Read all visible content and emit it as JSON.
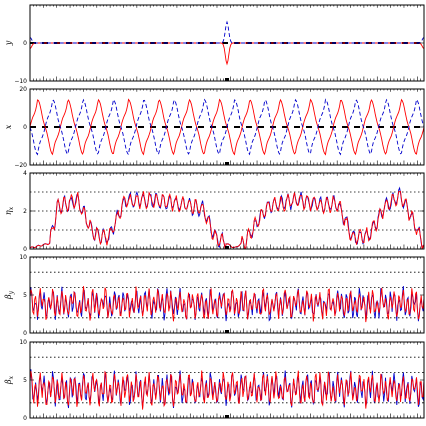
{
  "figure": {
    "background": "#ffffff",
    "series_colors": {
      "red": "#ff0000",
      "blue": "#0000cc",
      "dashed_ref": "#000000"
    }
  },
  "chart_data": [
    {
      "type": "line",
      "ylabel": "y",
      "ylim": [
        -10,
        10
      ],
      "yticks": [
        -10,
        0
      ],
      "yticklabels": [
        "−10",
        "0"
      ],
      "grid_y": [],
      "ref_line": {
        "y": 0,
        "style": "dashed",
        "color": "#000000"
      },
      "x_range": [
        0,
        1
      ],
      "series": [
        {
          "color": "#ff0000",
          "style": "solid",
          "shape": "spike",
          "base": 0,
          "events": [
            [
              0.0,
              -1.5
            ],
            [
              0.5,
              -5.5
            ],
            [
              1.0,
              -1.5
            ]
          ]
        },
        {
          "color": "#0000cc",
          "style": "dashed",
          "shape": "spike",
          "base": 0,
          "events": [
            [
              0.0,
              1.5
            ],
            [
              0.5,
              5.5
            ],
            [
              1.0,
              1.5
            ]
          ]
        }
      ]
    },
    {
      "type": "line",
      "ylabel": "x",
      "ylim": [
        -20,
        20
      ],
      "yticks": [
        -20,
        0,
        20
      ],
      "yticklabels": [
        "−20",
        "0",
        "20"
      ],
      "grid_y": [],
      "ref_line": {
        "y": 0,
        "style": "dashed",
        "color": "#000000"
      },
      "x_range": [
        0,
        1
      ],
      "series": [
        {
          "color": "#ff0000",
          "style": "solid",
          "shape": "osc",
          "cycles": 13,
          "amp": 17,
          "phase": 0.0
        },
        {
          "color": "#0000cc",
          "style": "dashed",
          "shape": "osc",
          "cycles": 13,
          "amp": 17,
          "phase": 3.14159
        }
      ]
    },
    {
      "type": "line",
      "ylabel": "η_x",
      "ylim": [
        0,
        4
      ],
      "yticks": [
        0,
        2,
        4
      ],
      "yticklabels": [
        "0",
        "2",
        "4"
      ],
      "grid_y": [
        1,
        2,
        3
      ],
      "x_range": [
        0,
        1
      ],
      "series": [
        {
          "color": "#0000cc",
          "style": "solid",
          "shape": "dispersion",
          "profile": [
            [
              0.0,
              0.05
            ],
            [
              0.05,
              0.3
            ],
            [
              0.07,
              2.2
            ],
            [
              0.12,
              2.6
            ],
            [
              0.16,
              0.8
            ],
            [
              0.2,
              0.6
            ],
            [
              0.24,
              2.5
            ],
            [
              0.3,
              2.6
            ],
            [
              0.38,
              2.4
            ],
            [
              0.44,
              2.1
            ],
            [
              0.47,
              0.6
            ],
            [
              0.52,
              0.05
            ],
            [
              0.55,
              0.5
            ],
            [
              0.6,
              2.2
            ],
            [
              0.68,
              2.6
            ],
            [
              0.74,
              2.3
            ],
            [
              0.78,
              2.4
            ],
            [
              0.82,
              0.6
            ],
            [
              0.86,
              0.7
            ],
            [
              0.9,
              2.2
            ],
            [
              0.94,
              2.8
            ],
            [
              0.98,
              1.2
            ],
            [
              1.0,
              0.05
            ]
          ]
        },
        {
          "color": "#ff0000",
          "style": "solid",
          "shape": "dispersion",
          "profile": [
            [
              0.0,
              0.05
            ],
            [
              0.05,
              0.3
            ],
            [
              0.07,
              2.2
            ],
            [
              0.12,
              2.6
            ],
            [
              0.16,
              0.8
            ],
            [
              0.2,
              0.6
            ],
            [
              0.24,
              2.5
            ],
            [
              0.3,
              2.6
            ],
            [
              0.38,
              2.4
            ],
            [
              0.44,
              2.1
            ],
            [
              0.47,
              0.6
            ],
            [
              0.52,
              0.05
            ],
            [
              0.55,
              0.5
            ],
            [
              0.6,
              2.2
            ],
            [
              0.68,
              2.6
            ],
            [
              0.74,
              2.3
            ],
            [
              0.78,
              2.4
            ],
            [
              0.82,
              0.6
            ],
            [
              0.86,
              0.7
            ],
            [
              0.9,
              2.2
            ],
            [
              0.94,
              2.8
            ],
            [
              0.98,
              1.2
            ],
            [
              1.0,
              0.05
            ]
          ]
        }
      ]
    },
    {
      "type": "line",
      "ylabel": "β_y",
      "ylim": [
        0,
        10
      ],
      "yticks": [
        0,
        5,
        10
      ],
      "yticklabels": [
        "0",
        "5",
        "10"
      ],
      "grid_y": [
        2,
        6,
        8
      ],
      "x_range": [
        0,
        1
      ],
      "series": [
        {
          "color": "#0000cc",
          "style": "solid",
          "shape": "beta",
          "mean": 3.8,
          "amp": 1.6
        },
        {
          "color": "#ff0000",
          "style": "solid",
          "shape": "beta",
          "mean": 3.8,
          "amp": 1.6
        }
      ]
    },
    {
      "type": "line",
      "ylabel": "β_x",
      "ylim": [
        0,
        10
      ],
      "yticks": [
        0,
        5,
        10
      ],
      "yticklabels": [
        "0",
        "5",
        "10"
      ],
      "grid_y": [
        2,
        6,
        8
      ],
      "x_range": [
        0,
        1
      ],
      "series": [
        {
          "color": "#0000cc",
          "style": "solid",
          "shape": "beta",
          "mean": 3.8,
          "amp": 1.8
        },
        {
          "color": "#ff0000",
          "style": "solid",
          "shape": "beta",
          "mean": 3.8,
          "amp": 1.8
        }
      ]
    }
  ]
}
